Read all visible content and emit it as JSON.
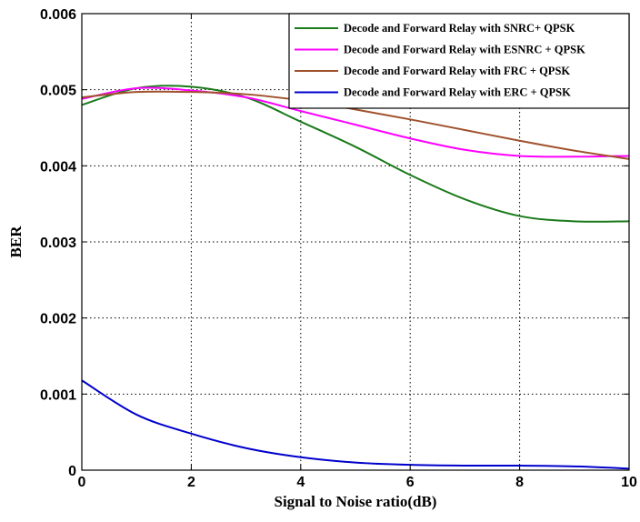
{
  "chart_data": {
    "type": "line",
    "title": "",
    "xlabel": "Signal to Noise ratio(dB)",
    "ylabel": "BER",
    "xlim": [
      0,
      10
    ],
    "ylim": [
      0,
      0.006
    ],
    "xticks": [
      "0",
      "2",
      "4",
      "6",
      "8",
      "10"
    ],
    "yticks": [
      "0",
      "0.001",
      "0.002",
      "0.003",
      "0.004",
      "0.005",
      "0.006"
    ],
    "grid": true,
    "legend_position": "top-right",
    "x": [
      0,
      1,
      2,
      3,
      4,
      5,
      6,
      7,
      8,
      9,
      10
    ],
    "series": [
      {
        "name": "Decode and Forward Relay with SNRC+ QPSK",
        "color": "#1a7a1a",
        "values": [
          0.0048,
          0.00502,
          0.00504,
          0.0049,
          0.00458,
          0.00425,
          0.00388,
          0.00356,
          0.00334,
          0.00327,
          0.00327
        ]
      },
      {
        "name": "Decode and Forward Relay with ESNRC + QPSK",
        "color": "#ff00ff",
        "values": [
          0.00488,
          0.00502,
          0.00499,
          0.0049,
          0.00472,
          0.00454,
          0.00436,
          0.00421,
          0.00413,
          0.00412,
          0.00413
        ]
      },
      {
        "name": "Decode and Forward Relay with FRC + QPSK",
        "color": "#a0522d",
        "values": [
          0.0049,
          0.00497,
          0.00497,
          0.00494,
          0.00486,
          0.00474,
          0.00461,
          0.00447,
          0.00433,
          0.0042,
          0.00409
        ]
      },
      {
        "name": "Decode and Forward Relay with ERC + QPSK",
        "color": "#0000cc",
        "values": [
          0.00118,
          0.00073,
          0.00048,
          0.00029,
          0.00017,
          0.0001,
          7e-05,
          6e-05,
          6e-05,
          5e-05,
          2e-05
        ]
      }
    ]
  }
}
